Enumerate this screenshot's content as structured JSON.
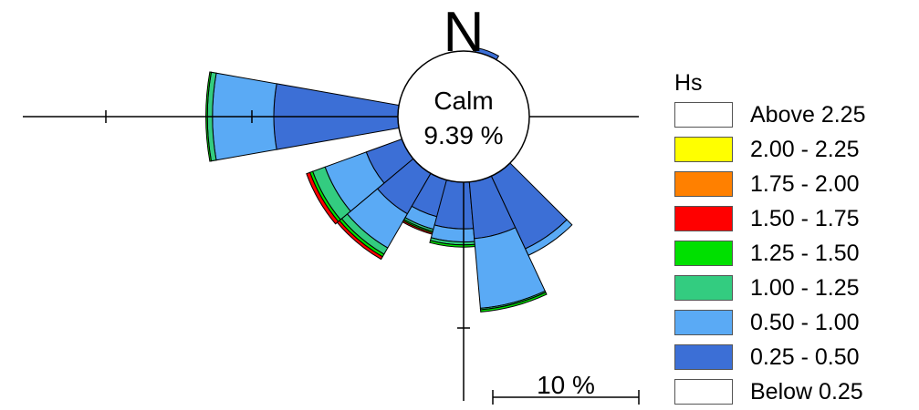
{
  "chart_data": {
    "type": "wind-rose",
    "north_label": "N",
    "calm": {
      "label": "Calm",
      "value": "9.39 %"
    },
    "scale": {
      "label": "10 %",
      "value": 10
    },
    "legend": {
      "title": "Hs",
      "items": [
        {
          "label": "Above 2.25",
          "color": "#ffffff"
        },
        {
          "label": "2.00 - 2.25",
          "color": "#ffff00"
        },
        {
          "label": "1.75 - 2.00",
          "color": "#ff8000"
        },
        {
          "label": "1.50 - 1.75",
          "color": "#ff0000"
        },
        {
          "label": "1.25 - 1.50",
          "color": "#00e000"
        },
        {
          "label": "1.00 - 1.25",
          "color": "#33cc80"
        },
        {
          "label": "0.50 - 1.00",
          "color": "#5aaaf5"
        },
        {
          "label": "0.25 - 0.50",
          "color": "#3c6fd6"
        },
        {
          "label": "Below 0.25",
          "color": "#ffffff"
        }
      ]
    },
    "bin_order": [
      "0.25 - 0.50",
      "0.50 - 1.00",
      "1.00 - 1.25",
      "1.25 - 1.50",
      "1.50 - 1.75"
    ],
    "sectors": [
      {
        "direction_deg": 270,
        "values": [
          8.5,
          4.2,
          0.35,
          0.1,
          0
        ]
      },
      {
        "direction_deg": 240,
        "values": [
          2.6,
          3.0,
          0.9,
          0.2,
          0.25
        ]
      },
      {
        "direction_deg": 220,
        "values": [
          3.2,
          2.7,
          0.5,
          0.2,
          0.2
        ]
      },
      {
        "direction_deg": 200,
        "values": [
          2.6,
          0.9,
          0.15,
          0.1,
          0.1
        ]
      },
      {
        "direction_deg": 185,
        "values": [
          3.2,
          0.9,
          0.2,
          0.15,
          0
        ]
      },
      {
        "direction_deg": 165,
        "values": [
          3.9,
          4.8,
          0.1,
          0.15,
          0
        ]
      },
      {
        "direction_deg": 145,
        "values": [
          5.5,
          0.5,
          0,
          0,
          0
        ]
      },
      {
        "direction_deg": 20,
        "values": [
          0.3,
          0,
          0,
          0,
          0
        ]
      }
    ]
  }
}
